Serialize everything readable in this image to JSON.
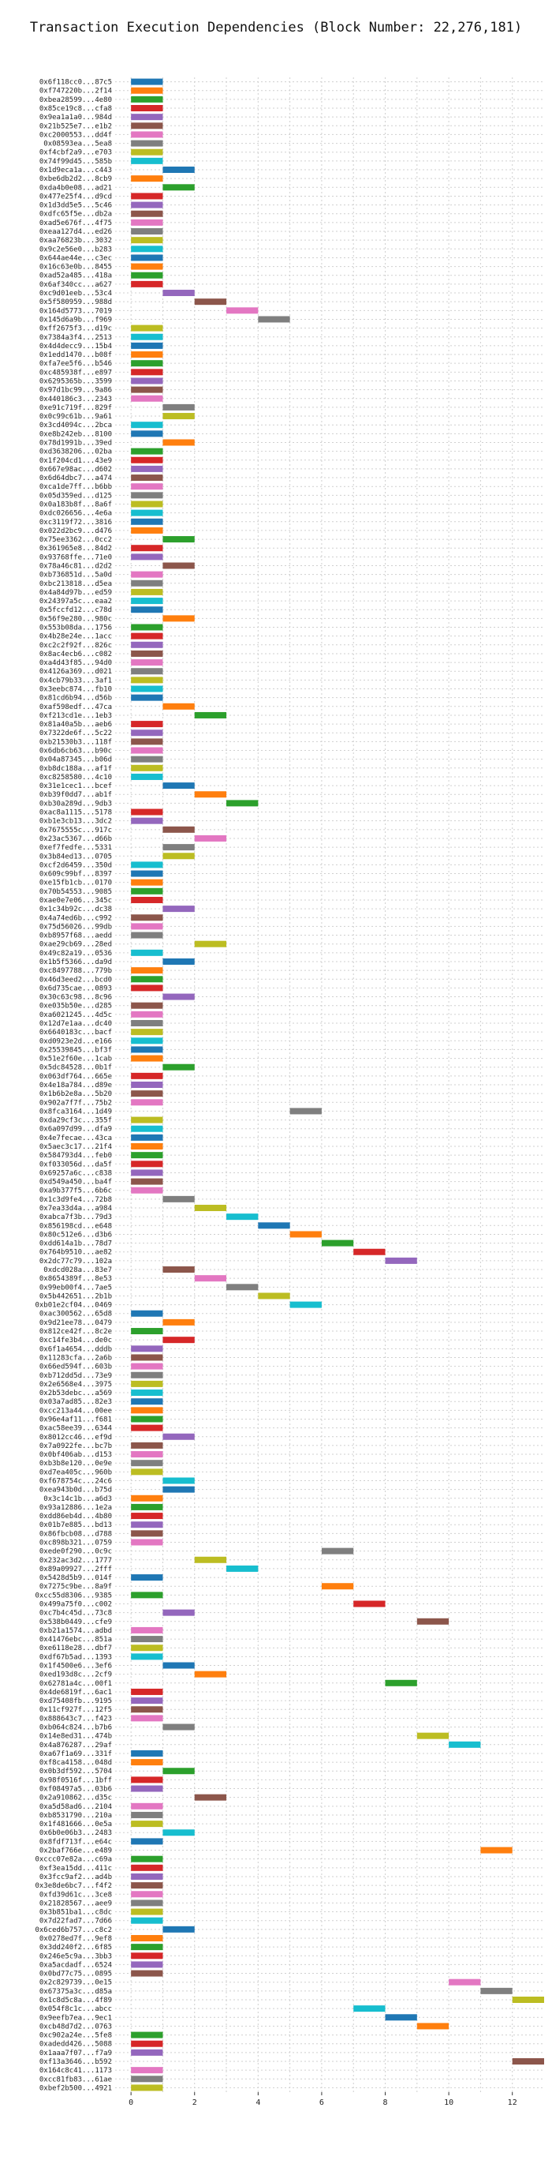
{
  "chart_data": {
    "type": "bar",
    "orientation": "horizontal",
    "title": "Transaction Execution Dependencies (Block Number: 22,276,181)",
    "xlabel": "",
    "ylabel": "",
    "xlim": [
      -0.5,
      13
    ],
    "xticks": [
      0,
      2,
      4,
      6,
      8,
      10,
      12
    ],
    "grid": true,
    "bar_span": 1,
    "palette": [
      "#1f77b4",
      "#ff7f0e",
      "#2ca02c",
      "#d62728",
      "#9467bd",
      "#8c564b",
      "#e377c2",
      "#7f7f7f",
      "#bcbd22",
      "#17becf"
    ],
    "rows": [
      {
        "label": "0x6f118cc0...87c5",
        "x": 0
      },
      {
        "label": "0xf747220b...2f14",
        "x": 0
      },
      {
        "label": "0xbea28599...4e80",
        "x": 0
      },
      {
        "label": "0x85ce19c8...cfa8",
        "x": 0
      },
      {
        "label": "0x9ea1a1a0...984d",
        "x": 0
      },
      {
        "label": "0x21b525e7...e1b2",
        "x": 0
      },
      {
        "label": "0xc2000553...dd4f",
        "x": 0
      },
      {
        "label": "0x08593ea...5ea8",
        "x": 0
      },
      {
        "label": "0xf4cbf2a9...e703",
        "x": 0
      },
      {
        "label": "0x74f99d45...585b",
        "x": 0
      },
      {
        "label": "0x1d9eca1a...c443",
        "x": 1
      },
      {
        "label": "0xbe6db2d2...8cb9",
        "x": 0
      },
      {
        "label": "0xda4b0e08...ad21",
        "x": 1
      },
      {
        "label": "0x477e25f4...d9cd",
        "x": 0
      },
      {
        "label": "0x1d3dd5e5...5c46",
        "x": 0
      },
      {
        "label": "0xdfc65f5e...db2a",
        "x": 0
      },
      {
        "label": "0xad5e676f...4f75",
        "x": 0
      },
      {
        "label": "0xeaa127d4...ed26",
        "x": 0
      },
      {
        "label": "0xaa76823b...3032",
        "x": 0
      },
      {
        "label": "0x9c2e56e0...b283",
        "x": 0
      },
      {
        "label": "0x644ae44e...c3ec",
        "x": 0
      },
      {
        "label": "0x16c63e0b...8455",
        "x": 0
      },
      {
        "label": "0xad52a485...418a",
        "x": 0
      },
      {
        "label": "0x6af340cc...a627",
        "x": 0
      },
      {
        "label": "0xc9d01eeb...53c4",
        "x": 1
      },
      {
        "label": "0x5f580959...988d",
        "x": 2
      },
      {
        "label": "0x164d5773...7019",
        "x": 3
      },
      {
        "label": "0x145d6a9b...f969",
        "x": 4
      },
      {
        "label": "0xff2675f3...d19c",
        "x": 0
      },
      {
        "label": "0x7384a3f4...2513",
        "x": 0
      },
      {
        "label": "0x4d4decc9...15b4",
        "x": 0
      },
      {
        "label": "0x1edd1470...b08f",
        "x": 0
      },
      {
        "label": "0xfa7ee5f6...b546",
        "x": 0
      },
      {
        "label": "0xc485938f...e897",
        "x": 0
      },
      {
        "label": "0x6295365b...3599",
        "x": 0
      },
      {
        "label": "0x97d1bc99...9a86",
        "x": 0
      },
      {
        "label": "0x440186c3...2343",
        "x": 0
      },
      {
        "label": "0xe91c719f...829f",
        "x": 1
      },
      {
        "label": "0x0c99c61b...9a61",
        "x": 1
      },
      {
        "label": "0x3cd4094c...2bca",
        "x": 0
      },
      {
        "label": "0xe8b242eb...8100",
        "x": 0
      },
      {
        "label": "0x78d1991b...39ed",
        "x": 1
      },
      {
        "label": "0xd3638206...02ba",
        "x": 0
      },
      {
        "label": "0x1f204cd1...43e9",
        "x": 0
      },
      {
        "label": "0x667e98ac...d602",
        "x": 0
      },
      {
        "label": "0x6d64dbc7...a474",
        "x": 0
      },
      {
        "label": "0xca1de7ff...b6bb",
        "x": 0
      },
      {
        "label": "0x05d359ed...d125",
        "x": 0
      },
      {
        "label": "0x0a183b8f...8a6f",
        "x": 0
      },
      {
        "label": "0xdc026656...4e6a",
        "x": 0
      },
      {
        "label": "0xc3119f72...3816",
        "x": 0
      },
      {
        "label": "0x022d2bc9...d476",
        "x": 0
      },
      {
        "label": "0x75ee3362...0cc2",
        "x": 1
      },
      {
        "label": "0x361965e8...84d2",
        "x": 0
      },
      {
        "label": "0x93768ffe...71e0",
        "x": 0
      },
      {
        "label": "0x78a46c81...d2d2",
        "x": 1
      },
      {
        "label": "0xb736851d...5a0d",
        "x": 0
      },
      {
        "label": "0xbc213818...d5ea",
        "x": 0
      },
      {
        "label": "0x4a84d97b...ed59",
        "x": 0
      },
      {
        "label": "0x24397a5c...eaa2",
        "x": 0
      },
      {
        "label": "0x5fccfd12...c78d",
        "x": 0
      },
      {
        "label": "0x56f9e280...980c",
        "x": 1
      },
      {
        "label": "0x553b08da...1756",
        "x": 0
      },
      {
        "label": "0x4b28e24e...1acc",
        "x": 0
      },
      {
        "label": "0xc2c2f92f...826c",
        "x": 0
      },
      {
        "label": "0x8ac4ecb6...c082",
        "x": 0
      },
      {
        "label": "0xa4d43f85...94d0",
        "x": 0
      },
      {
        "label": "0x4126a369...d021",
        "x": 0
      },
      {
        "label": "0x4cb79b33...3af1",
        "x": 0
      },
      {
        "label": "0x3eebc874...fb10",
        "x": 0
      },
      {
        "label": "0x81cd6b94...d56b",
        "x": 0
      },
      {
        "label": "0xaf598edf...47ca",
        "x": 1
      },
      {
        "label": "0xf213cd1e...1eb3",
        "x": 2
      },
      {
        "label": "0x81a40a5b...aeb6",
        "x": 0
      },
      {
        "label": "0x7322de6f...5c22",
        "x": 0
      },
      {
        "label": "0xb21530b3...118f",
        "x": 0
      },
      {
        "label": "0x6db6cb63...b90c",
        "x": 0
      },
      {
        "label": "0x04a87345...b06d",
        "x": 0
      },
      {
        "label": "0xb8dc188a...af1f",
        "x": 0
      },
      {
        "label": "0xc8258580...4c10",
        "x": 0
      },
      {
        "label": "0x31e1cec1...bcef",
        "x": 1
      },
      {
        "label": "0xb39f0dd7...ab1f",
        "x": 2
      },
      {
        "label": "0xb30a289d...9db3",
        "x": 3
      },
      {
        "label": "0xac8a1115...5178",
        "x": 0
      },
      {
        "label": "0xb1e3cb13...3dc2",
        "x": 0
      },
      {
        "label": "0x7675555c...917c",
        "x": 1
      },
      {
        "label": "0x23ac5367...d66b",
        "x": 2
      },
      {
        "label": "0xef7fedfe...5331",
        "x": 1
      },
      {
        "label": "0x3b84ed13...0705",
        "x": 1
      },
      {
        "label": "0xcf2d6459...350d",
        "x": 0
      },
      {
        "label": "0x609c99bf...8397",
        "x": 0
      },
      {
        "label": "0xe15fb1cb...0170",
        "x": 0
      },
      {
        "label": "0x70b54553...9085",
        "x": 0
      },
      {
        "label": "0xae0e7e06...345c",
        "x": 0
      },
      {
        "label": "0x1c34b92c...dc38",
        "x": 1
      },
      {
        "label": "0x4a74ed6b...c992",
        "x": 0
      },
      {
        "label": "0x75d56026...99db",
        "x": 0
      },
      {
        "label": "0xb8957f68...aedd",
        "x": 0
      },
      {
        "label": "0xae29cb69...28ed",
        "x": 2
      },
      {
        "label": "0x49c82a19...0536",
        "x": 0
      },
      {
        "label": "0x1b5f5366...da9d",
        "x": 1
      },
      {
        "label": "0xc8497788...779b",
        "x": 0
      },
      {
        "label": "0x46d3eed2...bcd0",
        "x": 0
      },
      {
        "label": "0x6d735cae...0893",
        "x": 0
      },
      {
        "label": "0x30c63c98...8c96",
        "x": 1
      },
      {
        "label": "0xe035b50e...d285",
        "x": 0
      },
      {
        "label": "0xa6021245...4d5c",
        "x": 0
      },
      {
        "label": "0x12d7e1aa...dc40",
        "x": 0
      },
      {
        "label": "0x6640183c...bacf",
        "x": 0
      },
      {
        "label": "0xd0923e2d...e166",
        "x": 0
      },
      {
        "label": "0x25539845...bf3f",
        "x": 0
      },
      {
        "label": "0x51e2f60e...1cab",
        "x": 0
      },
      {
        "label": "0x5dc84528...0b1f",
        "x": 1
      },
      {
        "label": "0x063df764...665e",
        "x": 0
      },
      {
        "label": "0x4e18a784...d89e",
        "x": 0
      },
      {
        "label": "0x1b6b2e8a...5b20",
        "x": 0
      },
      {
        "label": "0x902a7f7f...75b2",
        "x": 0
      },
      {
        "label": "0x8fca3164...1d49",
        "x": 5
      },
      {
        "label": "0xda29cf3c...355f",
        "x": 0
      },
      {
        "label": "0x6a097d99...dfa9",
        "x": 0
      },
      {
        "label": "0x4e7fecae...43ca",
        "x": 0
      },
      {
        "label": "0x5aec3c17...21f4",
        "x": 0
      },
      {
        "label": "0x584793d4...feb0",
        "x": 0
      },
      {
        "label": "0xf033056d...da5f",
        "x": 0
      },
      {
        "label": "0x69257a6c...c838",
        "x": 0
      },
      {
        "label": "0xd549a450...ba4f",
        "x": 0
      },
      {
        "label": "0xa9b377f5...6b6c",
        "x": 0
      },
      {
        "label": "0x1c3d9fe4...72b8",
        "x": 1
      },
      {
        "label": "0x7ea33d4a...a984",
        "x": 2
      },
      {
        "label": "0xabca7f3b...79d3",
        "x": 3
      },
      {
        "label": "0x856198cd...e648",
        "x": 4
      },
      {
        "label": "0x80c512e6...d3b6",
        "x": 5
      },
      {
        "label": "0xdd614a1b...78d7",
        "x": 6
      },
      {
        "label": "0x764b9510...ae82",
        "x": 7
      },
      {
        "label": "0x2dc77c79...102a",
        "x": 8
      },
      {
        "label": "0xdcd028a...83e7",
        "x": 1
      },
      {
        "label": "0x8654389f...8e53",
        "x": 2
      },
      {
        "label": "0x99eb00f4...7ae5",
        "x": 3
      },
      {
        "label": "0x5b442651...2b1b",
        "x": 4
      },
      {
        "label": "0xb01e2cf04...0469",
        "x": 5
      },
      {
        "label": "0xac300562...65d8",
        "x": 0
      },
      {
        "label": "0x9d21ee78...0479",
        "x": 1
      },
      {
        "label": "0x812ce42f...8c2e",
        "x": 0
      },
      {
        "label": "0xc14fe3b4...de0c",
        "x": 1
      },
      {
        "label": "0x6f1a4654...dddb",
        "x": 0
      },
      {
        "label": "0x11283cfa...2a6b",
        "x": 0
      },
      {
        "label": "0x66ed594f...603b",
        "x": 0
      },
      {
        "label": "0xb712dd5d...73e9",
        "x": 0
      },
      {
        "label": "0x2e6568e4...3975",
        "x": 0
      },
      {
        "label": "0x2b53debc...a569",
        "x": 0
      },
      {
        "label": "0x03a7ad85...82e3",
        "x": 0
      },
      {
        "label": "0xcc213a44...00ee",
        "x": 0
      },
      {
        "label": "0x96e4af11...f681",
        "x": 0
      },
      {
        "label": "0xac58ee39...6344",
        "x": 0
      },
      {
        "label": "0x8012cc46...ef9d",
        "x": 1
      },
      {
        "label": "0x7a0922fe...bc7b",
        "x": 0
      },
      {
        "label": "0x0bf406ab...d153",
        "x": 0
      },
      {
        "label": "0xb3b8e120...0e9e",
        "x": 0
      },
      {
        "label": "0xd7ea405c...960b",
        "x": 0
      },
      {
        "label": "0xf678754c...24c6",
        "x": 1
      },
      {
        "label": "0xea943b0d...b75d",
        "x": 1
      },
      {
        "label": "0x3c14c1b...a6d3",
        "x": 0
      },
      {
        "label": "0x93a12886...1e2a",
        "x": 0
      },
      {
        "label": "0xdd86eb4d...4b80",
        "x": 0
      },
      {
        "label": "0x01b7e885...bd13",
        "x": 0
      },
      {
        "label": "0x86fbcb08...d788",
        "x": 0
      },
      {
        "label": "0xc898b321...0759",
        "x": 0
      },
      {
        "label": "0xede0f290...0c9c",
        "x": 6
      },
      {
        "label": "0x232ac3d2...1777",
        "x": 2
      },
      {
        "label": "0x89a09927...2fff",
        "x": 3
      },
      {
        "label": "0x5428d5b9...014f",
        "x": 0
      },
      {
        "label": "0x7275c9be...8a9f",
        "x": 6
      },
      {
        "label": "0xcc55d8306...9385",
        "x": 0
      },
      {
        "label": "0x499a75f0...c002",
        "x": 7
      },
      {
        "label": "0xc7b4c45d...73c8",
        "x": 1
      },
      {
        "label": "0x538b0449...cfe9",
        "x": 9
      },
      {
        "label": "0xb21a1574...adbd",
        "x": 0
      },
      {
        "label": "0x41476ebc...851a",
        "x": 0
      },
      {
        "label": "0xe6118e28...dbf7",
        "x": 0
      },
      {
        "label": "0xdf67b5ad...1393",
        "x": 0
      },
      {
        "label": "0x1f4500e6...3ef6",
        "x": 1
      },
      {
        "label": "0xed193d8c...2cf9",
        "x": 2
      },
      {
        "label": "0x62781a4c...00f1",
        "x": 8
      },
      {
        "label": "0x4de6819f...6ac1",
        "x": 0
      },
      {
        "label": "0xd75408fb...9195",
        "x": 0
      },
      {
        "label": "0x11cf927f...12f5",
        "x": 0
      },
      {
        "label": "0x888643c7...f423",
        "x": 0
      },
      {
        "label": "0xb064c824...b7b6",
        "x": 1
      },
      {
        "label": "0x14e8ed31...474b",
        "x": 9
      },
      {
        "label": "0x4a876287...29af",
        "x": 10
      },
      {
        "label": "0xa67f1a69...331f",
        "x": 0
      },
      {
        "label": "0xf8ca4158...048d",
        "x": 0
      },
      {
        "label": "0x0b3df592...5704",
        "x": 1
      },
      {
        "label": "0x98f0516f...1bff",
        "x": 0
      },
      {
        "label": "0xf08497a5...03b6",
        "x": 0
      },
      {
        "label": "0x2a910862...d35c",
        "x": 2
      },
      {
        "label": "0xa5d58ad6...2104",
        "x": 0
      },
      {
        "label": "0xb8531790...210a",
        "x": 0
      },
      {
        "label": "0x1f481666...0e5a",
        "x": 0
      },
      {
        "label": "0x6b0e06b3...2483",
        "x": 1
      },
      {
        "label": "0x8fdf713f...e64c",
        "x": 0
      },
      {
        "label": "0x2baf766e...e489",
        "x": 11
      },
      {
        "label": "0xccc07e82a...c69a",
        "x": 0
      },
      {
        "label": "0xf3ea15dd...411c",
        "x": 0
      },
      {
        "label": "0x3fcc9af2...ad4b",
        "x": 0
      },
      {
        "label": "0x3e8de6bc7...f4f2",
        "x": 0
      },
      {
        "label": "0xfd39d61c...3ce8",
        "x": 0
      },
      {
        "label": "0x21828567...aee9",
        "x": 0
      },
      {
        "label": "0x3b851ba1...c8dc",
        "x": 0
      },
      {
        "label": "0x7d22fad7...7d66",
        "x": 0
      },
      {
        "label": "0x6ced6b757...c8c2",
        "x": 1
      },
      {
        "label": "0x0278ed7f...9ef8",
        "x": 0
      },
      {
        "label": "0x3dd240f2...6f85",
        "x": 0
      },
      {
        "label": "0x246e5c9a...3bb3",
        "x": 0
      },
      {
        "label": "0xa5acdadf...6524",
        "x": 0
      },
      {
        "label": "0x0bd77c75...0895",
        "x": 0
      },
      {
        "label": "0x2c829739...0e15",
        "x": 10
      },
      {
        "label": "0x67375a3c...d85a",
        "x": 11
      },
      {
        "label": "0x1c8d5c8a...4f89",
        "x": 12
      },
      {
        "label": "0x054f8c1c...abcc",
        "x": 7
      },
      {
        "label": "0x9eefb7ea...9ec1",
        "x": 8
      },
      {
        "label": "0xcb48d7d2...0763",
        "x": 9
      },
      {
        "label": "0xc902a24e...5fe8",
        "x": 0
      },
      {
        "label": "0xadedd426...5088",
        "x": 0
      },
      {
        "label": "0x1aaa7f07...f7a9",
        "x": 0
      },
      {
        "label": "0xf13a3646...b592",
        "x": 12
      },
      {
        "label": "0x164c8c41...1173",
        "x": 0
      },
      {
        "label": "0xcc81fb83...61ae",
        "x": 0
      },
      {
        "label": "0xbef2b500...4921",
        "x": 0
      }
    ]
  }
}
